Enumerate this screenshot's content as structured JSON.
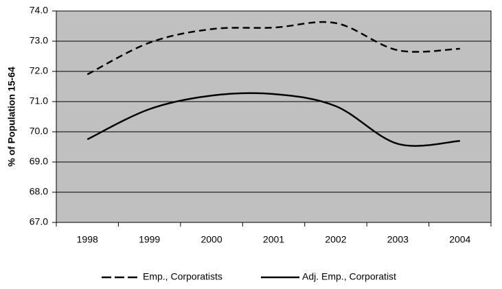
{
  "chart_data": {
    "type": "line",
    "y_label": "% of Population 15-64",
    "categories": [
      "1998",
      "1999",
      "2000",
      "2001",
      "2002",
      "2003",
      "2004"
    ],
    "series": [
      {
        "name": "Emp., Corporatists",
        "color": "#000000",
        "dash": true,
        "values": [
          71.9,
          72.95,
          73.4,
          73.45,
          73.6,
          72.7,
          72.75
        ]
      },
      {
        "name": "Adj. Emp., Corporatist",
        "color": "#000000",
        "dash": false,
        "values": [
          69.75,
          70.75,
          71.2,
          71.25,
          70.85,
          69.6,
          69.7
        ]
      }
    ],
    "ylim": [
      67,
      74
    ],
    "yticks": [
      {
        "value": 67,
        "label": "67.0"
      },
      {
        "value": 68,
        "label": "68.0"
      },
      {
        "value": 69,
        "label": "69.0"
      },
      {
        "value": 70,
        "label": "70.0"
      },
      {
        "value": 71,
        "label": "71.0"
      },
      {
        "value": 72,
        "label": "72.0"
      },
      {
        "value": 73,
        "label": "73.0"
      },
      {
        "value": 74,
        "label": "74.0"
      }
    ],
    "grid": true,
    "plot_background": "#c0c0c0",
    "legend": "bottom"
  }
}
